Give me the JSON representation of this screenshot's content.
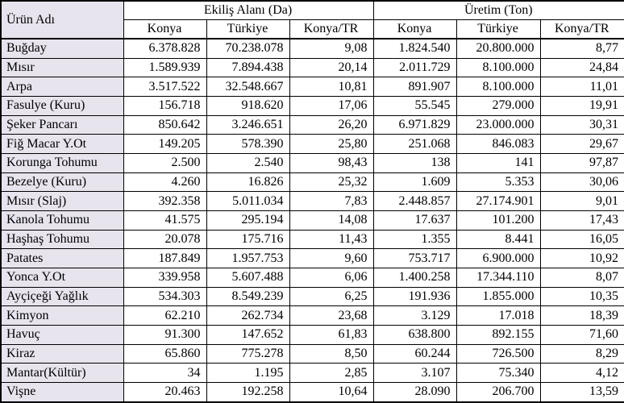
{
  "colors": {
    "product_column_bg": "#e7e4ee",
    "cell_bg": "#ffffff",
    "border": "#000000",
    "text": "#000000"
  },
  "table": {
    "product_header": "Ürün Adı",
    "groups": [
      {
        "label": "Ekiliş Alanı (Da)",
        "subcols": [
          "Konya",
          "Türkiye",
          "Konya/TR"
        ]
      },
      {
        "label": "Üretim (Ton)",
        "subcols": [
          "Konya",
          "Türkiye",
          "Konya/TR"
        ]
      }
    ],
    "rows": [
      {
        "product": "Buğday",
        "values": [
          "6.378.828",
          "70.238.078",
          "9,08",
          "1.824.540",
          "20.800.000",
          "8,77"
        ]
      },
      {
        "product": "Mısır",
        "values": [
          "1.589.939",
          "7.894.438",
          "20,14",
          "2.011.729",
          "8.100.000",
          "24,84"
        ]
      },
      {
        "product": "Arpa",
        "values": [
          "3.517.522",
          "32.548.667",
          "10,81",
          "891.907",
          "8.100.000",
          "11,01"
        ]
      },
      {
        "product": "Fasulye (Kuru)",
        "values": [
          "156.718",
          "918.620",
          "17,06",
          "55.545",
          "279.000",
          "19,91"
        ]
      },
      {
        "product": "Şeker Pancarı",
        "values": [
          "850.642",
          "3.246.651",
          "26,20",
          "6.971.829",
          "23.000.000",
          "30,31"
        ]
      },
      {
        "product": "Fiğ Macar Y.Ot",
        "values": [
          "149.205",
          "578.390",
          "25,80",
          "251.068",
          "846.083",
          "29,67"
        ]
      },
      {
        "product": "Korunga Tohumu",
        "values": [
          "2.500",
          "2.540",
          "98,43",
          "138",
          "141",
          "97,87"
        ]
      },
      {
        "product": "Bezelye (Kuru)",
        "values": [
          "4.260",
          "16.826",
          "25,32",
          "1.609",
          "5.353",
          "30,06"
        ]
      },
      {
        "product": "Mısır (Slaj)",
        "values": [
          "392.358",
          "5.011.034",
          "7,83",
          "2.448.857",
          "27.174.901",
          "9,01"
        ]
      },
      {
        "product": "Kanola Tohumu",
        "values": [
          "41.575",
          "295.194",
          "14,08",
          "17.637",
          "101.200",
          "17,43"
        ]
      },
      {
        "product": "Haşhaş Tohumu",
        "values": [
          "20.078",
          "175.716",
          "11,43",
          "1.355",
          "8.441",
          "16,05"
        ]
      },
      {
        "product": "Patates",
        "values": [
          "187.849",
          "1.957.753",
          "9,60",
          "753.717",
          "6.900.000",
          "10,92"
        ]
      },
      {
        "product": "Yonca Y.Ot",
        "values": [
          "339.958",
          "5.607.488",
          "6,06",
          "1.400.258",
          "17.344.110",
          "8,07"
        ]
      },
      {
        "product": "Ayçiçeği Yağlık",
        "values": [
          "534.303",
          "8.549.239",
          "6,25",
          "191.936",
          "1.855.000",
          "10,35"
        ]
      },
      {
        "product": "Kimyon",
        "values": [
          "62.210",
          "262.734",
          "23,68",
          "3.129",
          "17.018",
          "18,39"
        ]
      },
      {
        "product": "Havuç",
        "values": [
          "91.300",
          "147.652",
          "61,83",
          "638.800",
          "892.155",
          "71,60"
        ]
      },
      {
        "product": "Kiraz",
        "values": [
          "65.860",
          "775.278",
          "8,50",
          "60.244",
          "726.500",
          "8,29"
        ]
      },
      {
        "product": "Mantar(Kültür)",
        "values": [
          "34",
          "1.195",
          "2,85",
          "3.107",
          "75.340",
          "4,12"
        ]
      },
      {
        "product": "Vişne",
        "values": [
          "20.463",
          "192.258",
          "10,64",
          "28.090",
          "206.700",
          "13,59"
        ]
      }
    ]
  }
}
